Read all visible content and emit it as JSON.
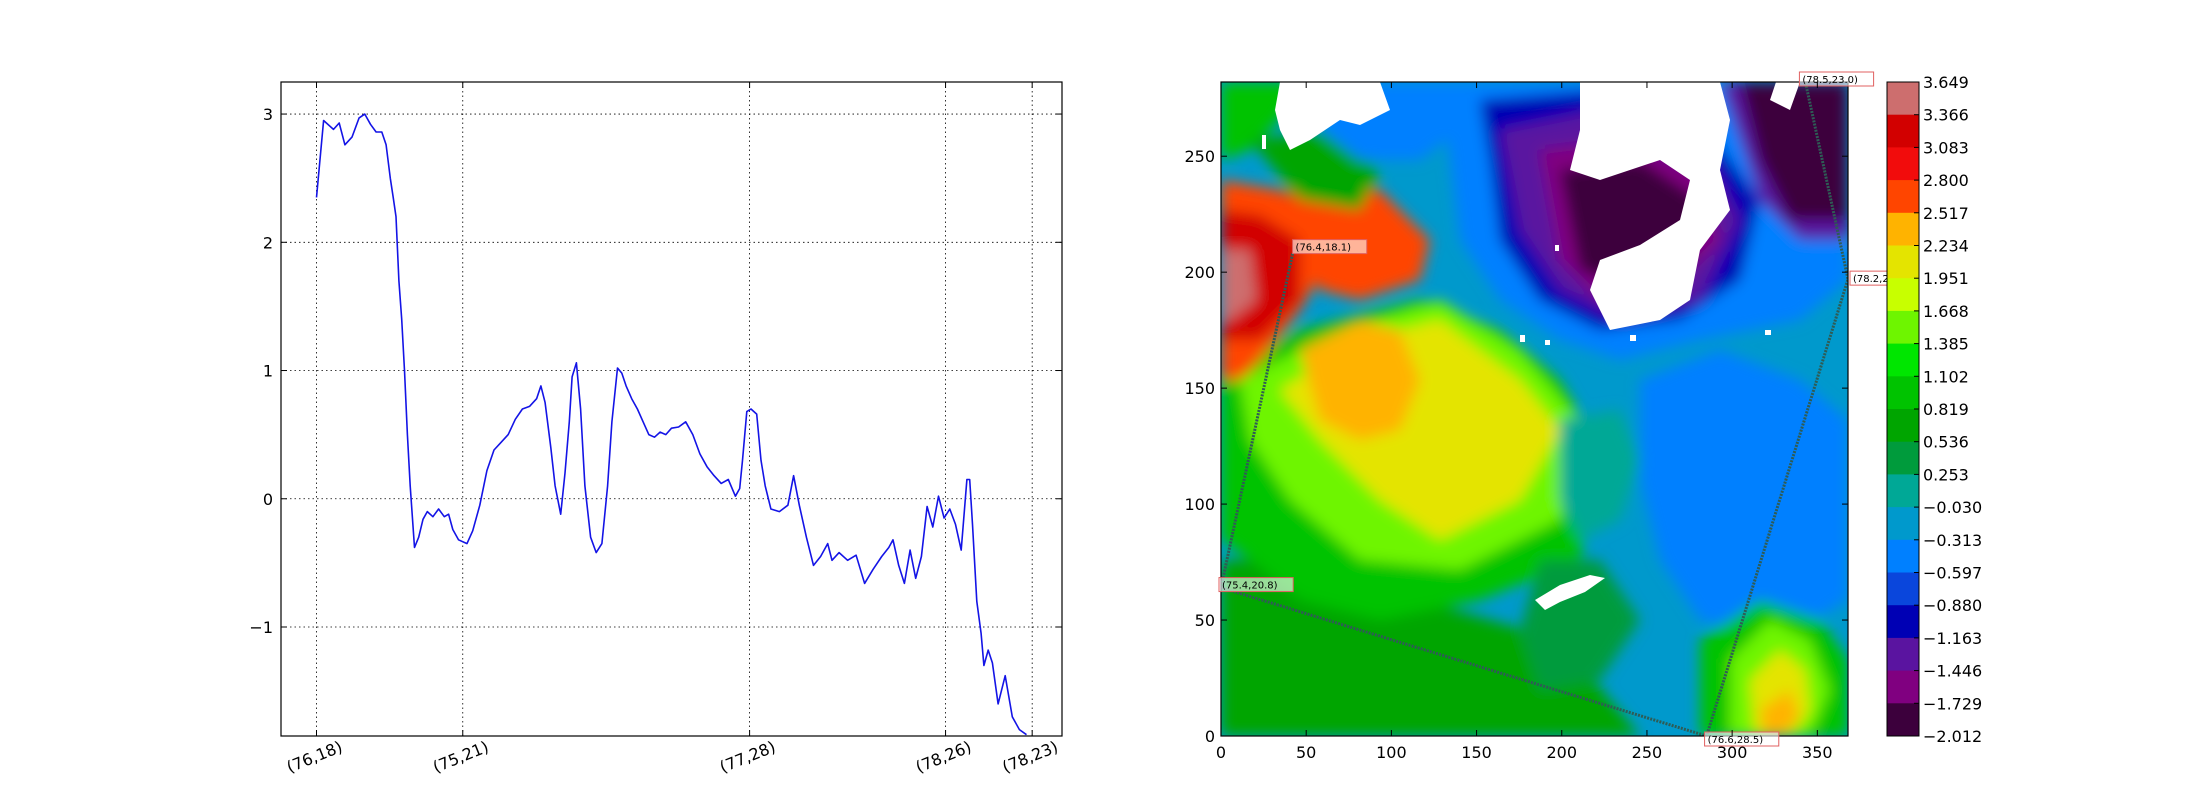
{
  "chart_data": [
    {
      "type": "line",
      "title": "",
      "xlabel": "",
      "ylabel": "",
      "grid": true,
      "xlim": [
        -0.25,
        5.25
      ],
      "ylim": [
        -1.85,
        3.25
      ],
      "yticks": [
        3,
        2,
        1,
        0,
        -1
      ],
      "ytick_labels": [
        "3",
        "2",
        "1",
        "0",
        "−1"
      ],
      "xticks": [
        0,
        1.03,
        3.05,
        4.43,
        5.04
      ],
      "xtick_labels": [
        "(76,18)",
        "(75,21)",
        "(77,28)",
        "(78,26)",
        "(78,23)"
      ],
      "line_color": "#1414e6",
      "series": [
        {
          "points": [
            [
              0.0,
              2.35
            ],
            [
              0.05,
              2.95
            ],
            [
              0.12,
              2.88
            ],
            [
              0.16,
              2.93
            ],
            [
              0.2,
              2.76
            ],
            [
              0.25,
              2.82
            ],
            [
              0.3,
              2.97
            ],
            [
              0.34,
              3.0
            ],
            [
              0.38,
              2.92
            ],
            [
              0.42,
              2.86
            ],
            [
              0.46,
              2.86
            ],
            [
              0.49,
              2.76
            ],
            [
              0.52,
              2.5
            ],
            [
              0.54,
              2.35
            ],
            [
              0.56,
              2.2
            ],
            [
              0.58,
              1.7
            ],
            [
              0.6,
              1.4
            ],
            [
              0.62,
              1.0
            ],
            [
              0.64,
              0.5
            ],
            [
              0.66,
              0.1
            ],
            [
              0.69,
              -0.38
            ],
            [
              0.72,
              -0.3
            ],
            [
              0.75,
              -0.16
            ],
            [
              0.78,
              -0.1
            ],
            [
              0.82,
              -0.14
            ],
            [
              0.86,
              -0.08
            ],
            [
              0.9,
              -0.14
            ],
            [
              0.93,
              -0.12
            ],
            [
              0.96,
              -0.24
            ],
            [
              1.0,
              -0.32
            ],
            [
              1.06,
              -0.35
            ],
            [
              1.1,
              -0.25
            ],
            [
              1.15,
              -0.05
            ],
            [
              1.2,
              0.22
            ],
            [
              1.25,
              0.38
            ],
            [
              1.3,
              0.44
            ],
            [
              1.35,
              0.5
            ],
            [
              1.4,
              0.62
            ],
            [
              1.45,
              0.7
            ],
            [
              1.5,
              0.72
            ],
            [
              1.55,
              0.78
            ],
            [
              1.58,
              0.88
            ],
            [
              1.61,
              0.75
            ],
            [
              1.65,
              0.4
            ],
            [
              1.68,
              0.1
            ],
            [
              1.72,
              -0.12
            ],
            [
              1.75,
              0.2
            ],
            [
              1.78,
              0.6
            ],
            [
              1.8,
              0.95
            ],
            [
              1.83,
              1.06
            ],
            [
              1.86,
              0.7
            ],
            [
              1.89,
              0.1
            ],
            [
              1.93,
              -0.3
            ],
            [
              1.97,
              -0.42
            ],
            [
              2.01,
              -0.35
            ],
            [
              2.05,
              0.1
            ],
            [
              2.08,
              0.6
            ],
            [
              2.12,
              1.02
            ],
            [
              2.15,
              0.98
            ],
            [
              2.18,
              0.88
            ],
            [
              2.22,
              0.78
            ],
            [
              2.26,
              0.7
            ],
            [
              2.3,
              0.6
            ],
            [
              2.34,
              0.5
            ],
            [
              2.38,
              0.48
            ],
            [
              2.42,
              0.52
            ],
            [
              2.46,
              0.5
            ],
            [
              2.5,
              0.55
            ],
            [
              2.55,
              0.56
            ],
            [
              2.6,
              0.6
            ],
            [
              2.65,
              0.5
            ],
            [
              2.7,
              0.35
            ],
            [
              2.75,
              0.25
            ],
            [
              2.8,
              0.18
            ],
            [
              2.85,
              0.12
            ],
            [
              2.9,
              0.15
            ],
            [
              2.95,
              0.02
            ],
            [
              2.98,
              0.08
            ],
            [
              3.0,
              0.3
            ],
            [
              3.03,
              0.68
            ],
            [
              3.06,
              0.7
            ],
            [
              3.1,
              0.66
            ],
            [
              3.13,
              0.3
            ],
            [
              3.16,
              0.1
            ],
            [
              3.2,
              -0.08
            ],
            [
              3.26,
              -0.1
            ],
            [
              3.32,
              -0.05
            ],
            [
              3.36,
              0.18
            ],
            [
              3.4,
              -0.05
            ],
            [
              3.45,
              -0.3
            ],
            [
              3.5,
              -0.52
            ],
            [
              3.55,
              -0.45
            ],
            [
              3.6,
              -0.35
            ],
            [
              3.63,
              -0.48
            ],
            [
              3.68,
              -0.42
            ],
            [
              3.74,
              -0.48
            ],
            [
              3.8,
              -0.44
            ],
            [
              3.86,
              -0.66
            ],
            [
              3.92,
              -0.55
            ],
            [
              3.98,
              -0.45
            ],
            [
              4.03,
              -0.38
            ],
            [
              4.06,
              -0.32
            ],
            [
              4.1,
              -0.52
            ],
            [
              4.14,
              -0.66
            ],
            [
              4.18,
              -0.4
            ],
            [
              4.22,
              -0.62
            ],
            [
              4.26,
              -0.45
            ],
            [
              4.3,
              -0.06
            ],
            [
              4.34,
              -0.22
            ],
            [
              4.38,
              0.02
            ],
            [
              4.42,
              -0.15
            ],
            [
              4.46,
              -0.08
            ],
            [
              4.5,
              -0.2
            ],
            [
              4.54,
              -0.4
            ],
            [
              4.58,
              0.15
            ],
            [
              4.6,
              0.15
            ],
            [
              4.62,
              -0.2
            ],
            [
              4.65,
              -0.8
            ],
            [
              4.68,
              -1.05
            ],
            [
              4.7,
              -1.3
            ],
            [
              4.73,
              -1.18
            ],
            [
              4.76,
              -1.28
            ],
            [
              4.8,
              -1.6
            ],
            [
              4.85,
              -1.38
            ],
            [
              4.9,
              -1.7
            ],
            [
              4.95,
              -1.8
            ],
            [
              5.0,
              -1.84
            ]
          ]
        }
      ]
    },
    {
      "type": "heatmap",
      "title": "",
      "xlabel": "",
      "ylabel": "",
      "xlim": [
        0,
        368
      ],
      "ylim": [
        0,
        282
      ],
      "xticks": [
        0,
        50,
        100,
        150,
        200,
        250,
        300,
        350
      ],
      "xtick_labels": [
        "0",
        "50",
        "100",
        "150",
        "200",
        "250",
        "300",
        "350"
      ],
      "yticks": [
        0,
        50,
        100,
        150,
        200,
        250
      ],
      "ytick_labels": [
        "0",
        "50",
        "100",
        "150",
        "200",
        "250"
      ],
      "colorbar": {
        "min": -2.012,
        "max": 3.649,
        "tick_labels": [
          "3.649",
          "3.366",
          "3.083",
          "2.800",
          "2.517",
          "2.234",
          "1.951",
          "1.668",
          "1.385",
          "1.102",
          "0.819",
          "0.536",
          "0.253",
          "−0.030",
          "−0.313",
          "−0.597",
          "−0.880",
          "−1.163",
          "−1.446",
          "−1.729",
          "−2.012"
        ],
        "colors_top_to_bottom": [
          "#cd6e6e",
          "#d20000",
          "#f20c0c",
          "#ff4500",
          "#ffb300",
          "#e4e400",
          "#c8ff00",
          "#6ef500",
          "#00e600",
          "#00c300",
          "#00a500",
          "#009b3c",
          "#00a896",
          "#0099cc",
          "#0080ff",
          "#0a46dc",
          "#0000b4",
          "#5a14a0",
          "#800080",
          "#3c003c"
        ]
      },
      "transect": {
        "color": "#2e5c55",
        "points": [
          {
            "label": "(76.4,18.1)",
            "x": 42,
            "y": 208
          },
          {
            "label": "(75.4,20.8)",
            "x": 0,
            "y": 64
          },
          {
            "label": "(76.6,28.5)",
            "x": 285,
            "y": 0
          },
          {
            "label": "(78.2,2",
            "x": 368,
            "y": 197
          },
          {
            "label": "(78.5,23.0)",
            "x": 343,
            "y": 282
          }
        ]
      },
      "grid": false
    }
  ]
}
